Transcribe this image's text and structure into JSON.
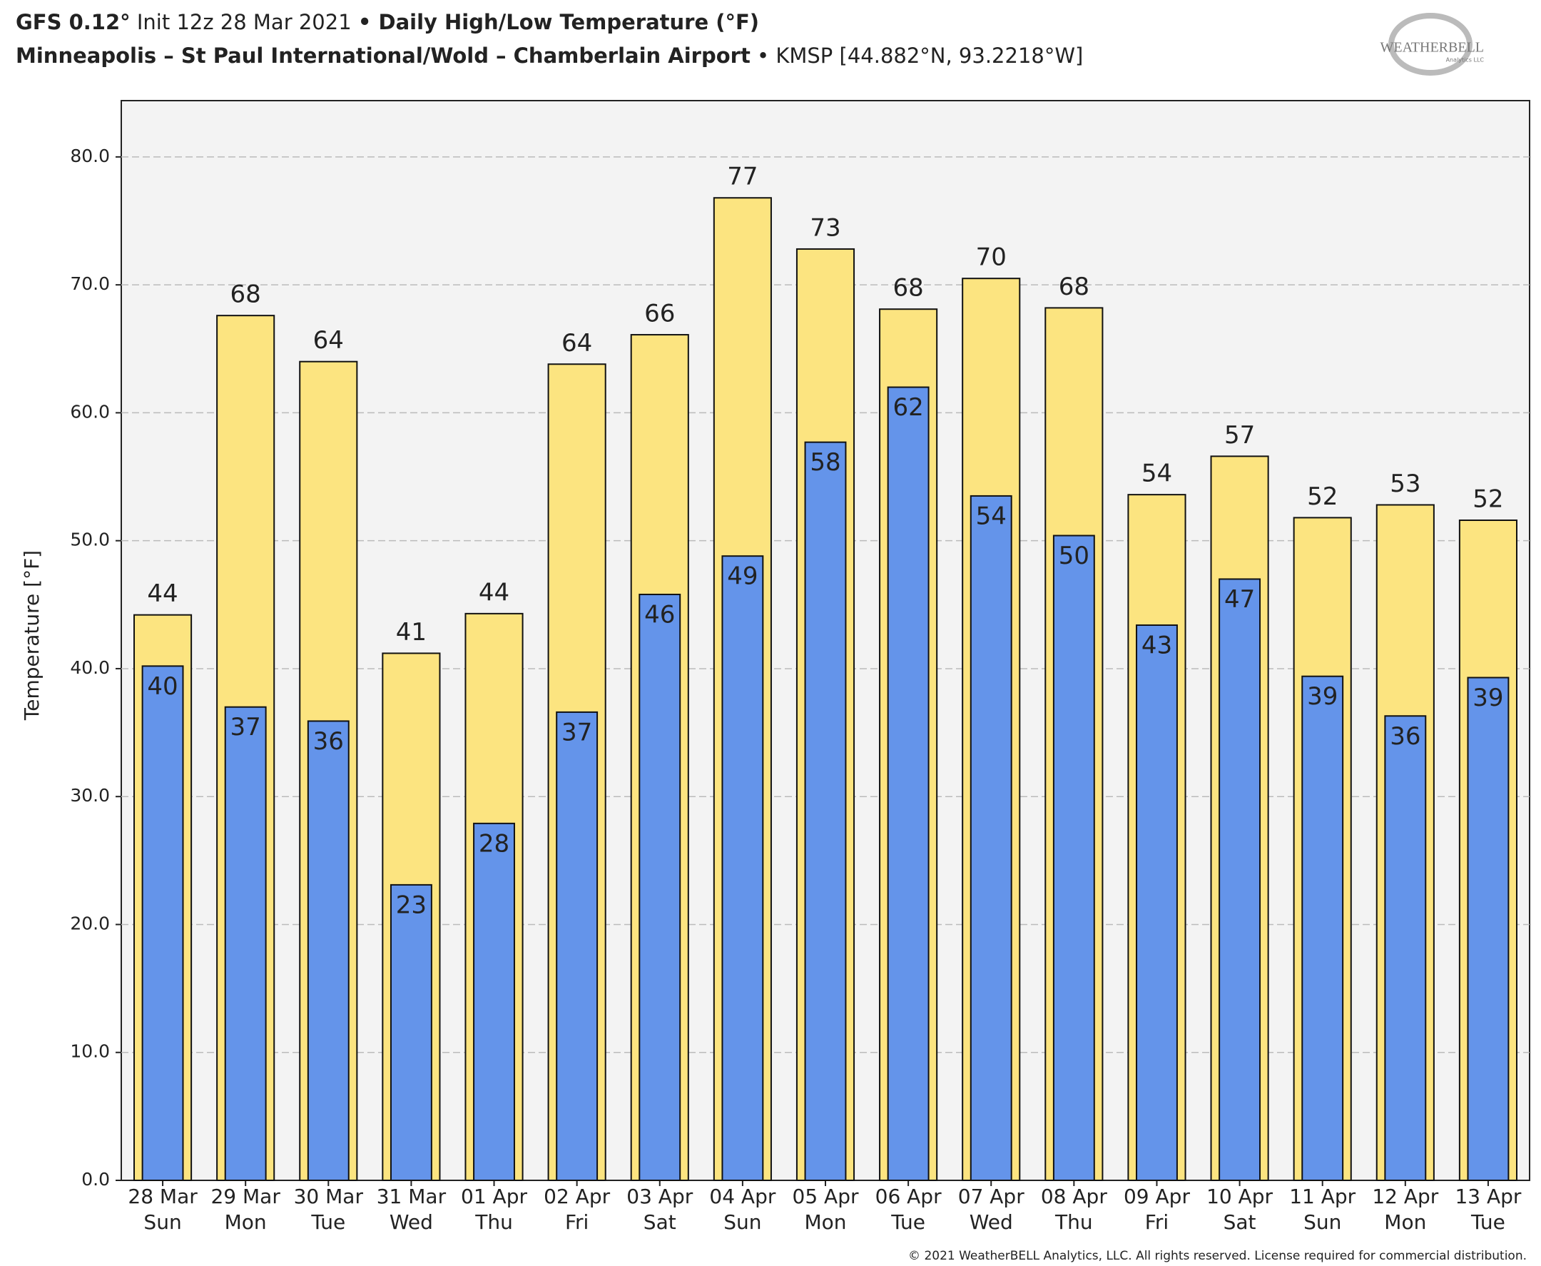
{
  "header": {
    "model": "GFS 0.12°",
    "init": "Init 12z 28 Mar 2021",
    "product": "• Daily High/Low Temperature (°F)",
    "station": "Minneapolis – St Paul International/Wold – Chamberlain Airport",
    "station_id": "• KMSP [44.882°N, 93.2218°W]",
    "logo": "WEATHERBELL",
    "logo_sub": "Analytics LLC"
  },
  "footer": "© 2021 WeatherBELL Analytics, LLC. All rights reserved. License required for commercial distribution.",
  "chart_data": {
    "type": "bar",
    "y_label": "Temperature [°F]",
    "categories": [
      [
        "28 Mar",
        "Sun"
      ],
      [
        "29 Mar",
        "Mon"
      ],
      [
        "30 Mar",
        "Tue"
      ],
      [
        "31 Mar",
        "Wed"
      ],
      [
        "01 Apr",
        "Thu"
      ],
      [
        "02 Apr",
        "Fri"
      ],
      [
        "03 Apr",
        "Sat"
      ],
      [
        "04 Apr",
        "Sun"
      ],
      [
        "05 Apr",
        "Mon"
      ],
      [
        "06 Apr",
        "Tue"
      ],
      [
        "07 Apr",
        "Wed"
      ],
      [
        "08 Apr",
        "Thu"
      ],
      [
        "09 Apr",
        "Fri"
      ],
      [
        "10 Apr",
        "Sat"
      ],
      [
        "11 Apr",
        "Sun"
      ],
      [
        "12 Apr",
        "Mon"
      ],
      [
        "13 Apr",
        "Tue"
      ]
    ],
    "series": [
      {
        "color": "#fce480",
        "values": [
          44.2,
          67.6,
          64.0,
          41.2,
          44.3,
          63.8,
          66.1,
          76.8,
          72.8,
          68.1,
          70.5,
          68.2,
          53.6,
          56.6,
          51.8,
          52.8,
          51.6
        ],
        "value_labels": [
          "44",
          "68",
          "64",
          "41",
          "44",
          "64",
          "66",
          "77",
          "73",
          "68",
          "70",
          "68",
          "54",
          "57",
          "52",
          "53",
          "52"
        ]
      },
      {
        "color": "#6494ea",
        "values": [
          40.2,
          37.0,
          35.9,
          23.1,
          27.9,
          36.6,
          45.8,
          48.8,
          57.7,
          62.0,
          53.5,
          50.4,
          43.4,
          47.0,
          39.4,
          36.3,
          39.3
        ],
        "value_labels": [
          "40",
          "37",
          "36",
          "23",
          "28",
          "37",
          "46",
          "49",
          "58",
          "62",
          "54",
          "50",
          "43",
          "47",
          "39",
          "36",
          "39"
        ]
      }
    ],
    "ylim": [
      0,
      84.4
    ],
    "yticks": [
      {
        "value": 0,
        "label": "0.0"
      },
      {
        "value": 10,
        "label": "10.0"
      },
      {
        "value": 20,
        "label": "20.0"
      },
      {
        "value": 30,
        "label": "30.0"
      },
      {
        "value": 40,
        "label": "40.0"
      },
      {
        "value": 50,
        "label": "50.0"
      },
      {
        "value": 60,
        "label": "60.0"
      },
      {
        "value": 70,
        "label": "70.0"
      },
      {
        "value": 80,
        "label": "80.0"
      }
    ],
    "grid": true
  }
}
